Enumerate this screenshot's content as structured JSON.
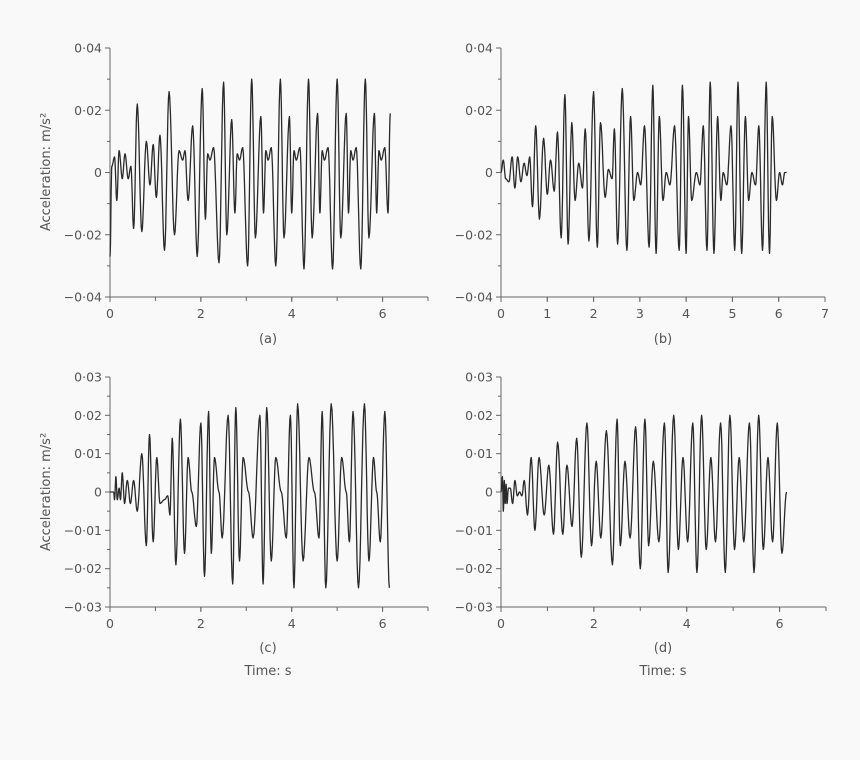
{
  "chart_data": [
    {
      "panel": "a",
      "type": "line",
      "caption": "(a)",
      "xlabel": "",
      "ylabel": "Acceleration: m/s²",
      "xlim": [
        0,
        7
      ],
      "ylim": [
        -0.04,
        0.04
      ],
      "xticks": [
        "0",
        "2",
        "4",
        "6"
      ],
      "yticks": [
        "0·04",
        "0·02",
        "0",
        "−0·02",
        "−0·04"
      ],
      "series": [
        {
          "name": "acceleration",
          "peaks_t": [
            0.0,
            0.04,
            0.1,
            0.15,
            0.2,
            0.27,
            0.33,
            0.4,
            0.46,
            0.52,
            0.6,
            0.7,
            0.8,
            0.88,
            0.95,
            1.02,
            1.1,
            1.2,
            1.3,
            1.42,
            1.52,
            1.6,
            1.65,
            1.72,
            1.82,
            1.92,
            2.03,
            2.1,
            2.15,
            2.2,
            2.28,
            2.4,
            2.5,
            2.57,
            2.68,
            2.75,
            2.8,
            2.85,
            2.92,
            3.03,
            3.12,
            3.2,
            3.32,
            3.38,
            3.43,
            3.48,
            3.55,
            3.65,
            3.75,
            3.83,
            3.95,
            4.0,
            4.05,
            4.1,
            4.18,
            4.27,
            4.37,
            4.45,
            4.57,
            4.62,
            4.67,
            4.72,
            4.8,
            4.9,
            5.0,
            5.08,
            5.2,
            5.25,
            5.3,
            5.35,
            5.42,
            5.52,
            5.62,
            5.7,
            5.82,
            5.87,
            5.92,
            5.97,
            6.05,
            6.12,
            6.17
          ],
          "peaks_v": [
            -0.027,
            0.002,
            0.005,
            -0.009,
            0.007,
            -0.002,
            0.006,
            -0.002,
            0.002,
            -0.018,
            0.022,
            -0.019,
            0.01,
            -0.004,
            0.009,
            -0.008,
            0.012,
            -0.025,
            0.026,
            -0.02,
            0.007,
            0.004,
            0.007,
            -0.009,
            0.015,
            -0.027,
            0.027,
            -0.015,
            0.006,
            0.004,
            0.008,
            -0.029,
            0.029,
            -0.02,
            0.017,
            -0.013,
            0.006,
            0.004,
            0.008,
            -0.03,
            0.03,
            -0.021,
            0.018,
            -0.013,
            0.007,
            0.004,
            0.008,
            -0.03,
            0.03,
            -0.021,
            0.018,
            -0.013,
            0.007,
            0.004,
            0.008,
            -0.031,
            0.03,
            -0.021,
            0.019,
            -0.013,
            0.007,
            0.004,
            0.008,
            -0.031,
            0.03,
            -0.021,
            0.019,
            -0.013,
            0.007,
            0.004,
            0.008,
            -0.031,
            0.03,
            -0.021,
            0.019,
            -0.013,
            0.007,
            0.004,
            0.008,
            -0.013,
            0.019
          ]
        }
      ]
    },
    {
      "panel": "b",
      "type": "line",
      "caption": "(b)",
      "xlabel": "",
      "ylabel": "",
      "xlim": [
        0,
        7
      ],
      "ylim": [
        -0.04,
        0.04
      ],
      "xticks": [
        "0",
        "1",
        "2",
        "3",
        "4",
        "5",
        "6",
        "7"
      ],
      "yticks": [
        "0·04",
        "0·02",
        "0",
        "−0·02",
        "−0·04"
      ],
      "series": [
        {
          "name": "acceleration",
          "peaks_t": [
            0.0,
            0.05,
            0.1,
            0.17,
            0.24,
            0.3,
            0.36,
            0.43,
            0.5,
            0.56,
            0.62,
            0.68,
            0.75,
            0.83,
            0.92,
            1.0,
            1.07,
            1.15,
            1.22,
            1.3,
            1.38,
            1.45,
            1.53,
            1.6,
            1.68,
            1.76,
            1.82,
            1.9,
            2.0,
            2.08,
            2.15,
            2.25,
            2.32,
            2.4,
            2.45,
            2.52,
            2.62,
            2.72,
            2.8,
            2.87,
            2.95,
            3.02,
            3.1,
            3.2,
            3.28,
            3.35,
            3.42,
            3.5,
            3.57,
            3.65,
            3.75,
            3.85,
            3.92,
            4.0,
            4.05,
            4.12,
            4.22,
            4.3,
            4.37,
            4.45,
            4.52,
            4.6,
            4.68,
            4.75,
            4.8,
            4.88,
            4.97,
            5.05,
            5.12,
            5.2,
            5.28,
            5.35,
            5.42,
            5.5,
            5.57,
            5.65,
            5.73,
            5.8,
            5.86,
            5.95,
            6.02,
            6.08,
            6.13,
            6.17
          ],
          "peaks_v": [
            0.0,
            0.004,
            -0.002,
            -0.003,
            0.005,
            -0.005,
            0.005,
            -0.003,
            0.003,
            -0.001,
            0.005,
            -0.011,
            0.015,
            -0.015,
            0.011,
            -0.007,
            0.004,
            -0.006,
            0.013,
            -0.021,
            0.025,
            -0.023,
            0.016,
            -0.009,
            0.003,
            -0.005,
            0.014,
            -0.022,
            0.026,
            -0.024,
            0.016,
            -0.008,
            0.001,
            -0.002,
            0.014,
            -0.023,
            0.027,
            -0.025,
            0.018,
            -0.009,
            0.0,
            -0.004,
            0.015,
            -0.024,
            0.028,
            -0.026,
            0.018,
            -0.009,
            0.0,
            -0.004,
            0.015,
            -0.025,
            0.028,
            -0.026,
            0.018,
            -0.009,
            0.0,
            -0.004,
            0.015,
            -0.025,
            0.029,
            -0.026,
            0.018,
            -0.009,
            0.0,
            -0.004,
            0.015,
            -0.025,
            0.029,
            -0.026,
            0.018,
            -0.009,
            0.0,
            -0.004,
            0.015,
            -0.025,
            0.029,
            -0.026,
            0.018,
            -0.009,
            0.0,
            -0.004,
            0.0,
            0.0
          ]
        }
      ]
    },
    {
      "panel": "c",
      "type": "line",
      "caption": "(c)",
      "xlabel": "Time: s",
      "ylabel": "Acceleration: m/s²",
      "xlim": [
        0,
        7
      ],
      "ylim": [
        -0.03,
        0.03
      ],
      "xticks": [
        "0",
        "2",
        "4",
        "6"
      ],
      "yticks": [
        "0·03",
        "0·02",
        "0·01",
        "0",
        "−0·01",
        "−0·02",
        "−0·03"
      ],
      "series": [
        {
          "name": "acceleration",
          "peaks_t": [
            0.0,
            0.08,
            0.1,
            0.13,
            0.16,
            0.2,
            0.23,
            0.27,
            0.32,
            0.38,
            0.45,
            0.52,
            0.6,
            0.7,
            0.8,
            0.87,
            0.95,
            1.03,
            1.1,
            1.2,
            1.27,
            1.32,
            1.37,
            1.45,
            1.55,
            1.64,
            1.72,
            1.8,
            1.9,
            2.0,
            2.08,
            2.17,
            2.23,
            2.3,
            2.4,
            2.47,
            2.6,
            2.7,
            2.77,
            2.85,
            2.93,
            3.05,
            3.15,
            3.3,
            3.37,
            3.45,
            3.55,
            3.65,
            3.77,
            3.88,
            3.97,
            4.05,
            4.13,
            4.25,
            4.38,
            4.5,
            4.6,
            4.67,
            4.75,
            4.87,
            5.0,
            5.1,
            5.2,
            5.27,
            5.35,
            5.47,
            5.6,
            5.7,
            5.8,
            5.87,
            5.95,
            6.05,
            6.15
          ],
          "peaks_v": [
            0.0,
            0.0,
            -0.002,
            0.004,
            -0.002,
            0.001,
            -0.002,
            0.005,
            -0.003,
            0.003,
            -0.003,
            0.003,
            -0.005,
            0.01,
            -0.014,
            0.015,
            -0.013,
            0.009,
            -0.003,
            -0.002,
            -0.001,
            -0.006,
            0.014,
            -0.019,
            0.019,
            -0.016,
            0.009,
            0.0,
            -0.009,
            0.018,
            -0.022,
            0.021,
            -0.016,
            0.009,
            0.0,
            -0.012,
            0.02,
            -0.024,
            0.022,
            -0.018,
            0.009,
            0.0,
            -0.012,
            0.02,
            -0.024,
            0.022,
            -0.018,
            0.009,
            0.0,
            -0.012,
            0.02,
            -0.025,
            0.023,
            -0.018,
            0.009,
            0.0,
            -0.012,
            0.021,
            -0.025,
            0.023,
            -0.018,
            0.009,
            0.0,
            -0.013,
            0.021,
            -0.025,
            0.023,
            -0.018,
            0.009,
            0.0,
            -0.013,
            0.021,
            -0.025,
            0.023,
            -0.018,
            0.009
          ]
        }
      ]
    },
    {
      "panel": "d",
      "type": "line",
      "caption": "(d)",
      "xlabel": "Time: s",
      "ylabel": "",
      "xlim": [
        0,
        7
      ],
      "ylim": [
        -0.03,
        0.03
      ],
      "xticks": [
        "0",
        "2",
        "4",
        "6"
      ],
      "yticks": [
        "0·03",
        "0·02",
        "0·01",
        "0",
        "−0·01",
        "−0·02",
        "−0·03"
      ],
      "series": [
        {
          "name": "acceleration",
          "peaks_t": [
            0.0,
            0.03,
            0.05,
            0.07,
            0.09,
            0.11,
            0.13,
            0.16,
            0.2,
            0.25,
            0.3,
            0.35,
            0.4,
            0.45,
            0.5,
            0.57,
            0.65,
            0.73,
            0.82,
            0.93,
            1.03,
            1.13,
            1.22,
            1.33,
            1.42,
            1.53,
            1.63,
            1.73,
            1.85,
            1.95,
            2.05,
            2.15,
            2.27,
            2.4,
            2.5,
            2.57,
            2.67,
            2.78,
            2.9,
            3.0,
            3.1,
            3.18,
            3.28,
            3.4,
            3.52,
            3.6,
            3.72,
            3.82,
            3.92,
            4.02,
            4.13,
            4.22,
            4.32,
            4.42,
            4.52,
            4.62,
            4.73,
            4.83,
            4.93,
            5.03,
            5.13,
            5.23,
            5.35,
            5.45,
            5.55,
            5.65,
            5.75,
            5.85,
            5.95,
            6.05,
            6.15
          ],
          "peaks_v": [
            0.0,
            0.004,
            -0.005,
            0.003,
            -0.003,
            0.002,
            -0.003,
            0.001,
            0.001,
            -0.003,
            0.003,
            -0.001,
            0.0,
            -0.001,
            0.003,
            -0.006,
            0.009,
            -0.01,
            0.009,
            -0.006,
            0.007,
            -0.011,
            0.013,
            -0.011,
            0.007,
            -0.009,
            0.014,
            -0.017,
            0.018,
            -0.014,
            0.008,
            -0.012,
            0.016,
            -0.019,
            0.019,
            -0.014,
            0.008,
            -0.012,
            0.017,
            -0.02,
            0.019,
            -0.014,
            0.008,
            -0.013,
            0.018,
            -0.021,
            0.02,
            -0.015,
            0.009,
            -0.013,
            0.018,
            -0.021,
            0.02,
            -0.015,
            0.009,
            -0.013,
            0.018,
            -0.021,
            0.02,
            -0.015,
            0.009,
            -0.013,
            0.018,
            -0.021,
            0.02,
            -0.015,
            0.009,
            -0.013,
            0.018,
            -0.016,
            0.0
          ]
        }
      ]
    }
  ],
  "labels": {
    "ylabel": "Acceleration: m/s²",
    "xlabel": "Time: s",
    "captions": [
      "(a)",
      "(b)",
      "(c)",
      "(d)"
    ]
  }
}
